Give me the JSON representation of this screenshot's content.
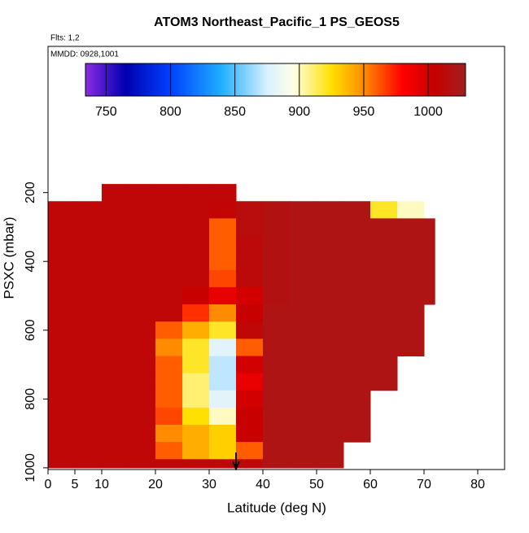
{
  "chart_data": {
    "type": "heatmap",
    "title": "ATOM3 Northeast_Pacific_1 PS_GEOS5",
    "subtitle": "Flts: 1,2",
    "annotation": "MMDD: 0928,1001",
    "x_label": "Latitude (deg N)",
    "y_label": "PSXC (mbar)",
    "xlim": [
      0,
      85
    ],
    "ylim": [
      -225,
      1005
    ],
    "xticks": [
      0,
      5,
      10,
      20,
      30,
      40,
      50,
      60,
      70,
      80
    ],
    "yticks": [
      200,
      400,
      600,
      800,
      1000
    ],
    "x_bins": [
      0,
      5,
      10,
      15,
      20,
      25,
      30,
      35,
      40,
      45,
      50,
      55,
      60,
      65,
      70,
      72
    ],
    "y_bins": [
      175,
      225,
      275,
      325,
      375,
      425,
      475,
      525,
      575,
      625,
      675,
      725,
      775,
      825,
      875,
      925,
      975,
      1000
    ],
    "values": [
      [
        null,
        null,
        1010,
        1010,
        1010,
        1010,
        1010,
        null,
        null,
        null,
        null,
        null,
        null,
        null,
        null
      ],
      [
        1010,
        1010,
        1010,
        1010,
        1010,
        1010,
        1008,
        1015,
        1018,
        1020,
        1020,
        1020,
        920,
        900,
        null
      ],
      [
        1010,
        1010,
        1010,
        1010,
        1010,
        1010,
        960,
        1015,
        1018,
        1020,
        1020,
        1020,
        1020,
        1020,
        1020
      ],
      [
        1010,
        1010,
        1010,
        1010,
        1010,
        1010,
        960,
        1012,
        1018,
        1020,
        1020,
        1020,
        1020,
        1020,
        1020
      ],
      [
        1010,
        1010,
        1010,
        1010,
        1010,
        1010,
        960,
        1012,
        1018,
        1020,
        1020,
        1020,
        1020,
        1020,
        1020
      ],
      [
        1010,
        1010,
        1010,
        1010,
        1010,
        1010,
        965,
        1012,
        1018,
        1020,
        1020,
        1020,
        1020,
        1020,
        1020
      ],
      [
        1010,
        1010,
        1010,
        1010,
        1010,
        1005,
        990,
        1000,
        1018,
        1020,
        1020,
        1020,
        1020,
        1020,
        1020
      ],
      [
        1010,
        1010,
        1010,
        1010,
        1010,
        970,
        950,
        1005,
        1020,
        1020,
        1020,
        1020,
        1020,
        1020,
        null
      ],
      [
        1010,
        1010,
        1010,
        1010,
        960,
        940,
        920,
        1010,
        1020,
        1020,
        1020,
        1020,
        1020,
        1020,
        null
      ],
      [
        1010,
        1010,
        1010,
        1010,
        950,
        920,
        880,
        960,
        1020,
        1020,
        1020,
        1020,
        1020,
        1020,
        null
      ],
      [
        1010,
        1010,
        1010,
        1010,
        960,
        920,
        870,
        1000,
        1020,
        1020,
        1020,
        1020,
        1020,
        null,
        null
      ],
      [
        1010,
        1010,
        1010,
        1010,
        960,
        910,
        870,
        990,
        1020,
        1020,
        1020,
        1020,
        1020,
        null,
        null
      ],
      [
        1010,
        1010,
        1010,
        1010,
        960,
        910,
        880,
        1000,
        1020,
        1020,
        1020,
        1020,
        null,
        null,
        null
      ],
      [
        1010,
        1010,
        1010,
        1010,
        965,
        925,
        900,
        1005,
        1020,
        1020,
        1020,
        1020,
        null,
        null,
        null
      ],
      [
        1010,
        1010,
        1010,
        1010,
        950,
        940,
        930,
        1005,
        1020,
        1020,
        1020,
        1020,
        null,
        null,
        null
      ],
      [
        1010,
        1010,
        1010,
        1010,
        960,
        940,
        930,
        960,
        1020,
        1020,
        1020,
        null,
        null,
        null,
        null
      ],
      [
        1010,
        1010,
        1010,
        1010,
        1010,
        1010,
        1010,
        1010,
        1020,
        1020,
        1020,
        null,
        null,
        null,
        null
      ]
    ],
    "colorbar_lim": [
      734,
      1029
    ],
    "colorbar_ticks": [
      750,
      800,
      850,
      900,
      950,
      1000
    ],
    "colormap": [
      {
        "value": 734,
        "color": "#8a2be2"
      },
      {
        "value": 765,
        "color": "#0000b0"
      },
      {
        "value": 800,
        "color": "#0040ff"
      },
      {
        "value": 840,
        "color": "#20b0ff"
      },
      {
        "value": 875,
        "color": "#d8f0ff"
      },
      {
        "value": 895,
        "color": "#ffffe8"
      },
      {
        "value": 925,
        "color": "#ffe000"
      },
      {
        "value": 950,
        "color": "#ff8c00"
      },
      {
        "value": 980,
        "color": "#ff0000"
      },
      {
        "value": 1005,
        "color": "#c80000"
      },
      {
        "value": 1029,
        "color": "#a02020"
      }
    ],
    "arrow_x": 35
  }
}
